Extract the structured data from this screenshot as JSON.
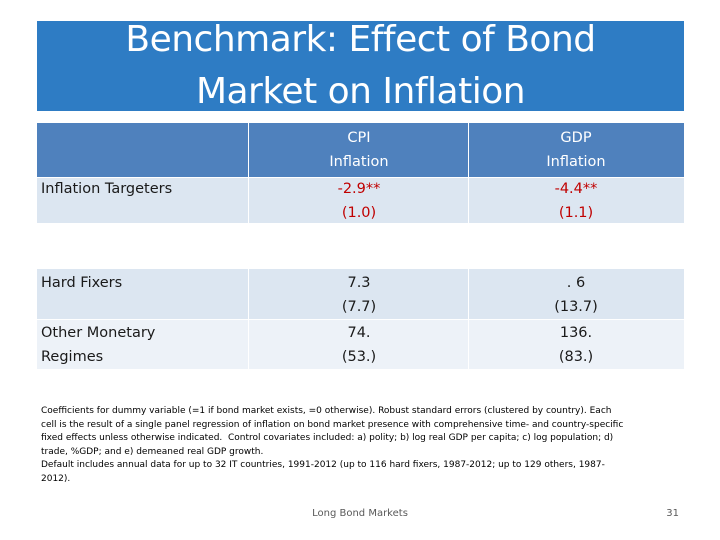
{
  "slide": {
    "title_line1": "Benchmark: Effect of Bond",
    "title_line2": "Market on Inflation",
    "footer": "Long Bond Markets",
    "page_number": "31"
  },
  "table": {
    "col1_header_line1": "CPI",
    "col1_header_line2": "Inflation",
    "col2_header_line1": "GDP",
    "col2_header_line2": "Inflation",
    "rows": [
      {
        "label_line1": "Inflation Targeters",
        "label_line2": "",
        "col1_coef": "-2.9**",
        "col1_se": "(1.0)",
        "col2_coef": "-4.4**",
        "col2_se": "(1.1)"
      },
      {
        "label_line1": "Hard Fixers",
        "label_line2": "",
        "col1_coef": "7.3",
        "col1_se": "(7.7)",
        "col2_coef": ". 6",
        "col2_se": "(13.7)"
      },
      {
        "label_line1": "Other Monetary",
        "label_line2": "Regimes",
        "col1_coef": "74.",
        "col1_se": "(53.)",
        "col2_coef": "136.",
        "col2_se": "(83.)"
      }
    ]
  },
  "notes": {
    "line1": "Coefficients for dummy variable (=1 if bond market exists, =0 otherwise). Robust standard errors (clustered by country). Each",
    "line2": "cell is the result of a single panel regression of inflation on bond market presence with comprehensive time- and country-specific",
    "line3": "fixed effects unless otherwise indicated.  Control covariates included: a) polity; b) log real GDP per capita; c) log population; d)",
    "line4": "trade, %GDP; and e) demeaned real GDP growth.",
    "line5": "Default includes annual data for up to 32 IT countries, 1991-2012 (up to 116 hard fixers, 1987-2012; up to 129 others, 1987-",
    "line6": "2012)."
  }
}
